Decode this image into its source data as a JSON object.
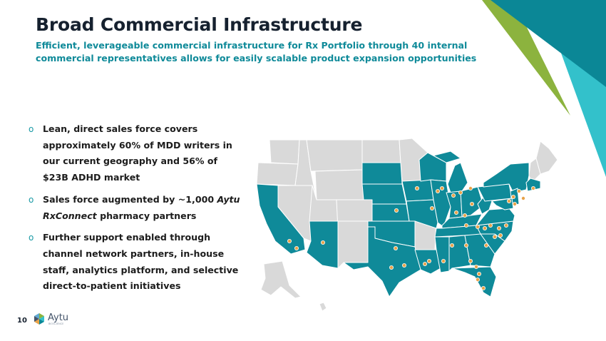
{
  "slide": {
    "title": "Broad Commercial Infrastructure",
    "subtitle": "Efficient, leverageable commercial infrastructure for Rx Portfolio through 40 internal commercial representatives allows for easily scalable product expansion opportunities",
    "page_number": "10"
  },
  "bullets": [
    {
      "text": "Lean, direct sales force covers approximately 60% of MDD writers in our current geography and 56% of $23B ADHD market"
    },
    {
      "before": "Sales force augmented by ~1,000 ",
      "emphasis": "Aytu RxConnect",
      "after": " pharmacy partners"
    },
    {
      "text": "Further support enabled through channel network partners, in-house staff, analytics platform, and selective direct-to-patient initiatives"
    }
  ],
  "logo": {
    "name": "Aytu",
    "tagline": "BIOSCIENCE"
  },
  "bullet_marker": "o",
  "colors": {
    "title": "#16212f",
    "subtitle": "#0f8a99",
    "covered_state": "#0f8a99",
    "uncovered_state": "#d9d9d9",
    "rep_marker": "#e8a34a",
    "deco_dark_teal": "#0b8796",
    "deco_light_teal": "#33c1cb",
    "deco_green": "#8cb33e"
  }
}
